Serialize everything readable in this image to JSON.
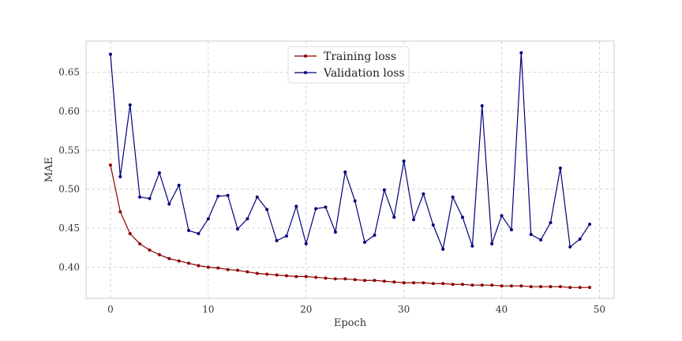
{
  "chart_data": {
    "type": "line",
    "title": "",
    "xlabel": "Epoch",
    "ylabel": "MAE",
    "xlim": [
      -2.5,
      51.5
    ],
    "ylim": [
      0.36,
      0.69
    ],
    "xticks": [
      0,
      10,
      20,
      30,
      40,
      50
    ],
    "xtick_labels": [
      "0",
      "10",
      "20",
      "30",
      "40",
      "50"
    ],
    "yticks": [
      0.4,
      0.45,
      0.5,
      0.55,
      0.6,
      0.65
    ],
    "ytick_labels": [
      "0.40",
      "0.45",
      "0.50",
      "0.55",
      "0.60",
      "0.65"
    ],
    "grid": true,
    "legend_position": "top-center",
    "x": [
      0,
      1,
      2,
      3,
      4,
      5,
      6,
      7,
      8,
      9,
      10,
      11,
      12,
      13,
      14,
      15,
      16,
      17,
      18,
      19,
      20,
      21,
      22,
      23,
      24,
      25,
      26,
      27,
      28,
      29,
      30,
      31,
      32,
      33,
      34,
      35,
      36,
      37,
      38,
      39,
      40,
      41,
      42,
      43,
      44,
      45,
      46,
      47,
      48,
      49
    ],
    "series": [
      {
        "name": "Training loss",
        "color": "#8b0000",
        "values": [
          0.531,
          0.471,
          0.443,
          0.43,
          0.422,
          0.416,
          0.411,
          0.408,
          0.405,
          0.402,
          0.4,
          0.399,
          0.397,
          0.396,
          0.394,
          0.392,
          0.391,
          0.39,
          0.389,
          0.388,
          0.388,
          0.387,
          0.386,
          0.385,
          0.385,
          0.384,
          0.383,
          0.383,
          0.382,
          0.381,
          0.38,
          0.38,
          0.38,
          0.379,
          0.379,
          0.378,
          0.378,
          0.377,
          0.377,
          0.377,
          0.376,
          0.376,
          0.376,
          0.375,
          0.375,
          0.375,
          0.375,
          0.374,
          0.374,
          0.374
        ]
      },
      {
        "name": "Validation loss",
        "color": "#00007a",
        "values": [
          0.673,
          0.516,
          0.608,
          0.49,
          0.488,
          0.521,
          0.481,
          0.505,
          0.447,
          0.443,
          0.462,
          0.491,
          0.492,
          0.449,
          0.462,
          0.49,
          0.474,
          0.434,
          0.44,
          0.478,
          0.43,
          0.475,
          0.477,
          0.445,
          0.522,
          0.485,
          0.432,
          0.441,
          0.499,
          0.464,
          0.536,
          0.461,
          0.494,
          0.454,
          0.423,
          0.49,
          0.464,
          0.427,
          0.607,
          0.43,
          0.466,
          0.448,
          0.675,
          0.442,
          0.435,
          0.457,
          0.527,
          0.426,
          0.436,
          0.455
        ]
      }
    ]
  }
}
